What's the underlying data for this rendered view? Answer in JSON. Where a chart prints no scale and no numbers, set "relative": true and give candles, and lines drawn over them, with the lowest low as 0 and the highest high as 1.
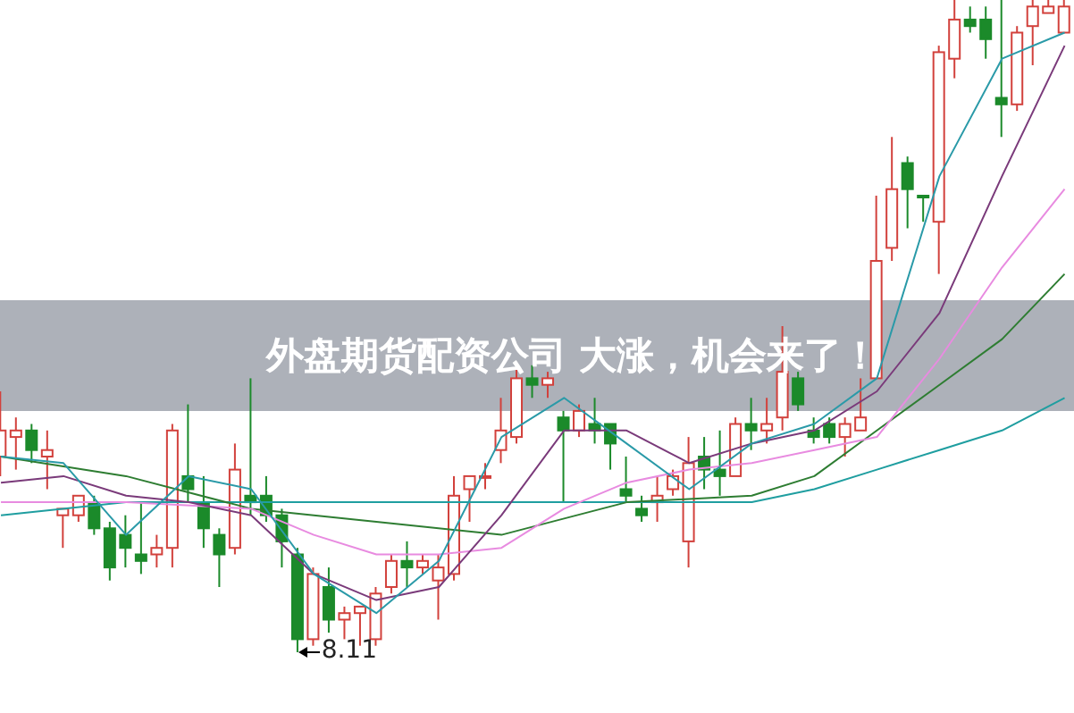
{
  "chart_data": {
    "type": "candlestick",
    "title": "外盘期货配资公司 大涨，机会来了！",
    "relative": true,
    "categories": [
      null,
      null,
      null,
      null,
      null,
      null,
      null,
      null,
      null,
      null,
      null,
      null,
      null,
      null,
      null,
      null,
      null,
      null,
      null,
      null,
      null,
      null,
      null,
      null,
      null,
      null,
      null,
      null,
      null,
      null,
      null,
      null,
      null,
      null,
      null,
      null,
      null,
      null,
      null,
      null,
      null,
      null,
      null,
      null,
      null,
      null,
      null,
      null,
      null,
      null,
      null,
      null,
      null,
      null,
      null,
      null,
      null,
      null,
      null,
      null,
      null,
      null,
      null,
      null,
      null,
      null,
      null,
      null,
      null
    ],
    "ohlc": [
      [
        0.3,
        0.4,
        0.27,
        0.34
      ],
      [
        0.33,
        0.36,
        0.28,
        0.34
      ],
      [
        0.34,
        0.35,
        0.29,
        0.31
      ],
      [
        0.3,
        0.34,
        0.25,
        0.31
      ],
      [
        0.21,
        0.22,
        0.16,
        0.22
      ],
      [
        0.21,
        0.24,
        0.2,
        0.24
      ],
      [
        0.23,
        0.24,
        0.18,
        0.19
      ],
      [
        0.19,
        0.2,
        0.11,
        0.13
      ],
      [
        0.18,
        0.21,
        0.13,
        0.16
      ],
      [
        0.15,
        0.23,
        0.12,
        0.14
      ],
      [
        0.15,
        0.18,
        0.13,
        0.16
      ],
      [
        0.16,
        0.35,
        0.13,
        0.34
      ],
      [
        0.27,
        0.38,
        0.23,
        0.25
      ],
      [
        0.23,
        0.27,
        0.16,
        0.19
      ],
      [
        0.18,
        0.19,
        0.1,
        0.15
      ],
      [
        0.16,
        0.32,
        0.15,
        0.28
      ],
      [
        0.24,
        0.42,
        0.21,
        0.23
      ],
      [
        0.24,
        0.27,
        0.2,
        0.21
      ],
      [
        0.21,
        0.22,
        0.13,
        0.17
      ],
      [
        0.15,
        0.16,
        0,
        0.02
      ],
      [
        0.02,
        0.13,
        0.01,
        0.12
      ],
      [
        0.1,
        0.13,
        0.03,
        0.05
      ],
      [
        0.05,
        0.07,
        0.02,
        0.06
      ],
      [
        0.06,
        0.07,
        0.01,
        0.07
      ],
      [
        0.02,
        0.1,
        0.01,
        0.09
      ],
      [
        0.1,
        0.15,
        0.09,
        0.14
      ],
      [
        0.14,
        0.17,
        0.1,
        0.13
      ],
      [
        0.13,
        0.15,
        0.12,
        0.14
      ],
      [
        0.11,
        0.15,
        0.05,
        0.13
      ],
      [
        0.12,
        0.27,
        0.11,
        0.24
      ],
      [
        0.25,
        0.27,
        0.2,
        0.27
      ],
      [
        0.27,
        0.29,
        0.25,
        0.27
      ],
      [
        0.31,
        0.39,
        0.29,
        0.34
      ],
      [
        0.33,
        0.44,
        0.32,
        0.42
      ],
      [
        0.42,
        0.44,
        0.39,
        0.41
      ],
      [
        0.41,
        0.43,
        0.39,
        0.42
      ],
      [
        0.36,
        0.37,
        0.23,
        0.34
      ],
      [
        0.34,
        0.38,
        0.33,
        0.37
      ],
      [
        0.35,
        0.39,
        0.32,
        0.34
      ],
      [
        0.35,
        0.35,
        0.28,
        0.32
      ],
      [
        0.25,
        0.3,
        0.23,
        0.24
      ],
      [
        0.22,
        0.24,
        0.2,
        0.21
      ],
      [
        0.23,
        0.27,
        0.2,
        0.24
      ],
      [
        0.25,
        0.28,
        0.24,
        0.27
      ],
      [
        0.17,
        0.33,
        0.13,
        0.29
      ],
      [
        0.3,
        0.33,
        0.25,
        0.28
      ],
      [
        0.28,
        0.34,
        0.24,
        0.27
      ],
      [
        0.27,
        0.36,
        0.27,
        0.35
      ],
      [
        0.35,
        0.39,
        0.31,
        0.34
      ],
      [
        0.34,
        0.39,
        0.32,
        0.35
      ],
      [
        0.36,
        0.5,
        0.34,
        0.43
      ],
      [
        0.42,
        0.43,
        0.37,
        0.38
      ],
      [
        0.34,
        0.36,
        0.32,
        0.33
      ],
      [
        0.35,
        0.36,
        0.32,
        0.33
      ],
      [
        0.33,
        0.36,
        0.3,
        0.35
      ],
      [
        0.34,
        0.42,
        0.34,
        0.36
      ],
      [
        0.42,
        0.7,
        0.42,
        0.6
      ],
      [
        0.62,
        0.79,
        0.6,
        0.71
      ],
      [
        0.75,
        0.76,
        0.65,
        0.71
      ],
      [
        0.7,
        0.7,
        0.66,
        0.7
      ],
      [
        0.66,
        0.93,
        0.58,
        0.92
      ],
      [
        0.91,
        1,
        0.88,
        0.97
      ],
      [
        0.97,
        0.99,
        0.95,
        0.96
      ],
      [
        0.97,
        0.99,
        0.91,
        0.94
      ],
      [
        0.85,
        1,
        0.79,
        0.84
      ],
      [
        0.84,
        0.96,
        0.83,
        0.95
      ],
      [
        0.96,
        1,
        0.9,
        0.99
      ],
      [
        0.98,
        1,
        0.98,
        0.99
      ],
      [
        0.95,
        1,
        0.95,
        0.99
      ]
    ],
    "colors": [
      "#d2413c",
      "#d2413c",
      "#1b8a2a",
      "#d2413c",
      "#d2413c",
      "#d2413c",
      "#1b8a2a",
      "#1b8a2a",
      "#1b8a2a",
      "#1b8a2a",
      "#d2413c",
      "#d2413c",
      "#1b8a2a",
      "#1b8a2a",
      "#1b8a2a",
      "#d2413c",
      "#1b8a2a",
      "#1b8a2a",
      "#1b8a2a",
      "#1b8a2a",
      "#d2413c",
      "#1b8a2a",
      "#d2413c",
      "#d2413c",
      "#d2413c",
      "#d2413c",
      "#1b8a2a",
      "#d2413c",
      "#d2413c",
      "#d2413c",
      "#d2413c",
      "#d2413c",
      "#d2413c",
      "#d2413c",
      "#1b8a2a",
      "#d2413c",
      "#1b8a2a",
      "#d2413c",
      "#1b8a2a",
      "#1b8a2a",
      "#1b8a2a",
      "#1b8a2a",
      "#d2413c",
      "#d2413c",
      "#d2413c",
      "#1b8a2a",
      "#1b8a2a",
      "#d2413c",
      "#1b8a2a",
      "#d2413c",
      "#d2413c",
      "#1b8a2a",
      "#1b8a2a",
      "#1b8a2a",
      "#d2413c",
      "#d2413c",
      "#d2413c",
      "#d2413c",
      "#1b8a2a",
      "#1b8a2a",
      "#d2413c",
      "#d2413c",
      "#1b8a2a",
      "#1b8a2a",
      "#1b8a2a",
      "#d2413c",
      "#d2413c",
      "#d2413c",
      "#d2413c"
    ],
    "series": [
      {
        "type": "line",
        "color": "#1f9ea0",
        "values": [
          0.21,
          null,
          null,
          null,
          null,
          null,
          null,
          null,
          0.23,
          null,
          null,
          null,
          null,
          null,
          null,
          null,
          0.23,
          null,
          null,
          null,
          null,
          null,
          null,
          null,
          0.23,
          null,
          null,
          null,
          null,
          null,
          null,
          null,
          0.23,
          null,
          null,
          null,
          null,
          null,
          null,
          null,
          0.23,
          null,
          null,
          null,
          null,
          null,
          null,
          null,
          0.23,
          null,
          null,
          null,
          0.25,
          null,
          null,
          null,
          0.28,
          null,
          null,
          null,
          0.31,
          null,
          null,
          null,
          0.34,
          null,
          null,
          null,
          0.39
        ]
      },
      {
        "type": "line",
        "color": "#2e7d32",
        "values": [
          0.3,
          null,
          null,
          null,
          null,
          null,
          null,
          null,
          0.27,
          null,
          null,
          null,
          null,
          null,
          null,
          null,
          0.22,
          null,
          null,
          null,
          null,
          null,
          null,
          null,
          0.2,
          null,
          null,
          null,
          null,
          null,
          null,
          null,
          0.18,
          null,
          null,
          null,
          null,
          null,
          null,
          null,
          0.23,
          null,
          null,
          null,
          null,
          null,
          null,
          null,
          0.24,
          null,
          null,
          null,
          0.27,
          null,
          null,
          null,
          0.34,
          null,
          null,
          null,
          0.41,
          null,
          null,
          null,
          0.48,
          null,
          null,
          null,
          0.58
        ]
      },
      {
        "type": "line",
        "color": "#e88be0",
        "values": [
          0.23,
          null,
          null,
          null,
          null,
          null,
          null,
          null,
          0.23,
          null,
          null,
          null,
          null,
          null,
          null,
          null,
          0.22,
          null,
          null,
          null,
          0.18,
          null,
          null,
          null,
          0.15,
          null,
          null,
          null,
          0.15,
          null,
          null,
          null,
          0.16,
          null,
          null,
          null,
          0.22,
          null,
          null,
          null,
          0.26,
          null,
          null,
          null,
          0.28,
          null,
          null,
          null,
          0.29,
          null,
          null,
          null,
          0.31,
          null,
          null,
          null,
          0.33,
          null,
          null,
          null,
          0.45,
          null,
          null,
          null,
          0.59,
          null,
          null,
          null,
          0.71
        ]
      },
      {
        "type": "line",
        "color": "#7a3a7a",
        "values": [
          0.26,
          null,
          null,
          null,
          0.27,
          null,
          null,
          null,
          0.24,
          null,
          null,
          null,
          0.23,
          null,
          null,
          null,
          0.21,
          null,
          null,
          null,
          0.12,
          null,
          null,
          null,
          0.08,
          null,
          null,
          null,
          0.1,
          null,
          null,
          null,
          0.21,
          null,
          null,
          null,
          0.34,
          null,
          null,
          null,
          0.34,
          null,
          null,
          null,
          0.29,
          null,
          null,
          null,
          0.32,
          null,
          null,
          null,
          0.34,
          null,
          null,
          null,
          0.4,
          null,
          null,
          null,
          0.52,
          null,
          null,
          null,
          0.73,
          null,
          null,
          null,
          0.93
        ]
      },
      {
        "type": "line",
        "color": "#2a9aa8",
        "values": [
          0.3,
          null,
          null,
          null,
          0.29,
          null,
          null,
          null,
          0.18,
          null,
          null,
          null,
          0.27,
          null,
          null,
          null,
          0.25,
          null,
          null,
          null,
          0.12,
          null,
          null,
          null,
          0.06,
          null,
          null,
          null,
          0.14,
          null,
          null,
          null,
          0.33,
          null,
          null,
          null,
          0.39,
          null,
          null,
          null,
          0.32,
          null,
          null,
          null,
          0.25,
          null,
          null,
          null,
          0.32,
          null,
          null,
          null,
          0.35,
          null,
          null,
          null,
          0.42,
          null,
          null,
          null,
          0.73,
          null,
          null,
          null,
          0.91,
          null,
          null,
          null,
          0.95
        ]
      }
    ],
    "annotations": [
      "8.11"
    ]
  }
}
